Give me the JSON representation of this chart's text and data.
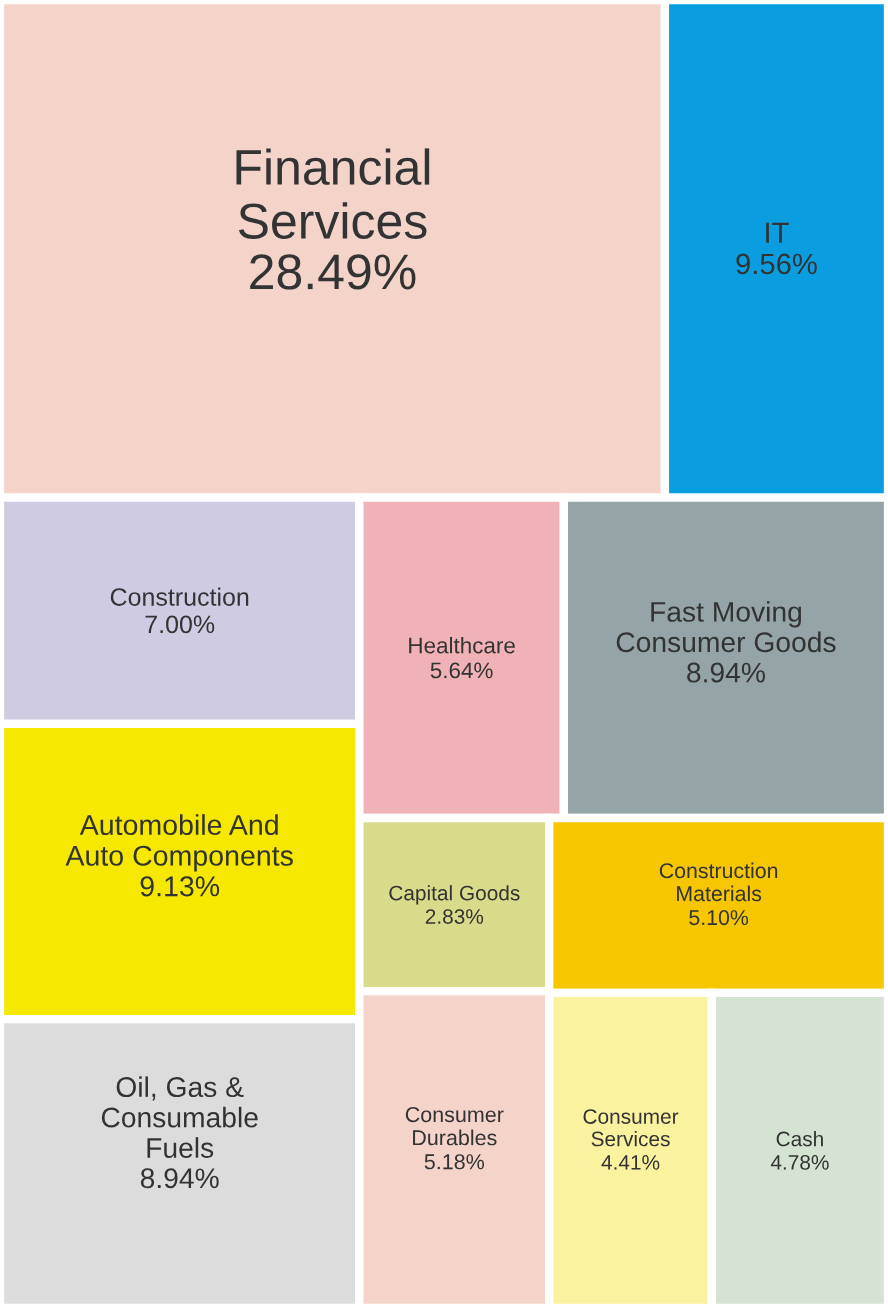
{
  "chart_data": {
    "type": "other",
    "categories": [
      "Financial\nServices",
      "IT",
      "Construction",
      "Automobile And\nAuto Components",
      "Oil, Gas &\nConsumable\nFuels",
      "Healthcare",
      "Fast Moving\nConsumer Goods",
      "Capital Goods",
      "Consumer\nDurables",
      "Construction\nMaterials",
      "Consumer\nServices",
      "Cash"
    ],
    "values": [
      28.49,
      9.56,
      7.0,
      9.13,
      8.94,
      5.64,
      8.94,
      2.83,
      5.18,
      5.1,
      4.41,
      4.78
    ],
    "value_labels": [
      "28.49%",
      "9.56%",
      "7.00%",
      "9.13%",
      "8.94%",
      "5.64%",
      "8.94%",
      "2.83%",
      "5.18%",
      "5.10%",
      "4.41%",
      "4.78%"
    ],
    "colors": [
      "#f4d3c9",
      "#0a9ee0",
      "#cfcbe3",
      "#f7e800",
      "#dcdcdc",
      "#f0b2b6",
      "#95a4a6",
      "#d8dc8a",
      "#f4d3c9",
      "#f6c600",
      "#fbf2a0",
      "#d5e3d3"
    ]
  }
}
